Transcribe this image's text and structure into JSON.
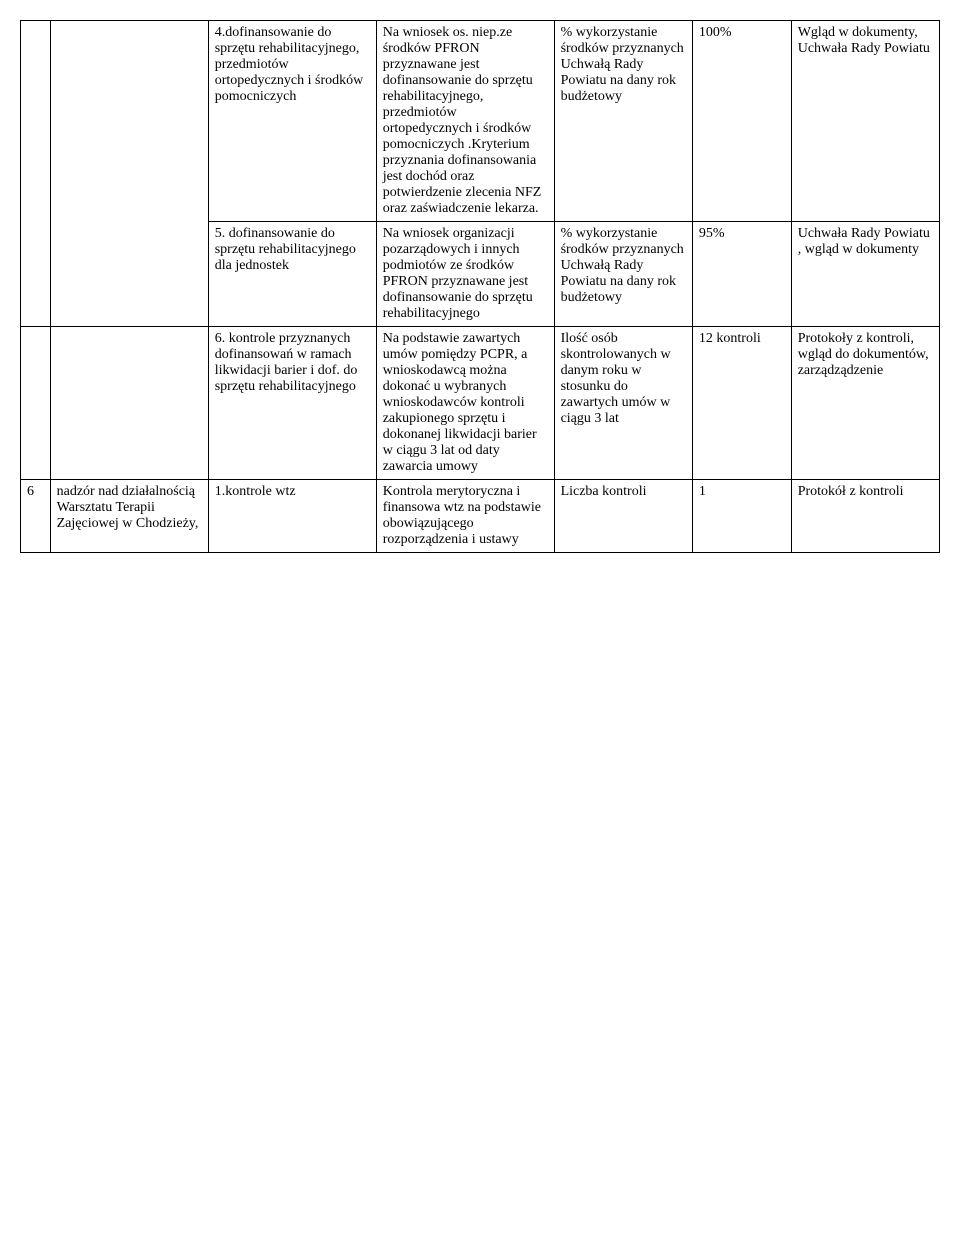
{
  "rows": {
    "r4": {
      "c3": "4.dofinansowanie do sprzętu rehabilitacyjnego, przedmiotów ortopedycznych i środków pomocniczych",
      "c4": "Na wniosek os. niep.ze środków PFRON przyznawane jest dofinansowanie do sprzętu rehabilitacyjnego, przedmiotów ortopedycznych i środków pomocniczych .Kryterium przyznania dofinansowania jest dochód oraz potwierdzenie zlecenia NFZ oraz zaświadczenie lekarza.",
      "c5": "% wykorzystanie środków przyznanych Uchwałą Rady Powiatu na dany rok budżetowy",
      "c6": "100%",
      "c7": "Wgląd w dokumenty, Uchwała Rady Powiatu"
    },
    "r5": {
      "c3": "5. dofinansowanie do sprzętu rehabilitacyjnego dla jednostek",
      "c4": "Na wniosek organizacji pozarządowych i innych podmiotów ze środków PFRON przyznawane jest dofinansowanie do sprzętu rehabilitacyjnego",
      "c5": "% wykorzystanie środków przyznanych Uchwałą Rady Powiatu na dany rok budżetowy",
      "c6": "95%",
      "c7": "Uchwała Rady Powiatu , wgląd w dokumenty"
    },
    "r6": {
      "c3": "6. kontrole przyznanych dofinansowań w ramach likwidacji barier i dof. do sprzętu rehabilitacyjnego",
      "c4": "Na podstawie zawartych umów pomiędzy PCPR, a wnioskodawcą można dokonać u wybranych wnioskodawców kontroli zakupionego sprzętu i dokonanej likwidacji barier w ciągu 3 lat od daty zawarcia umowy",
      "c5": "Ilość osób skontrolowanych w danym roku w stosunku do zawartych umów w ciągu 3 lat",
      "c6": "12 kontroli",
      "c7": "Protokoły z kontroli, wgląd do dokumentów, zarządządzenie"
    },
    "r7": {
      "c1": "6",
      "c2": "nadzór nad działalnością Warsztatu Terapii Zajęciowej w Chodzieży,",
      "c3": "1.kontrole wtz",
      "c4": "Kontrola merytoryczna i finansowa wtz na podstawie obowiązującego rozporządzenia i ustawy",
      "c5": "Liczba kontroli",
      "c6": "1",
      "c7": "Protokół z kontroli"
    }
  }
}
